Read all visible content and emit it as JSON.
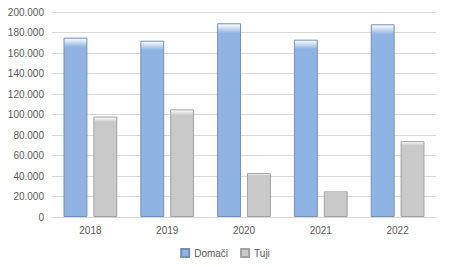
{
  "chart_data": {
    "type": "bar",
    "categories": [
      "2018",
      "2019",
      "2020",
      "2021",
      "2022"
    ],
    "series": [
      {
        "name": "Domači",
        "color": "#8fb4e3",
        "values": [
          175000,
          172000,
          189000,
          173000,
          188000
        ]
      },
      {
        "name": "Tuji",
        "color": "#c9c9c9",
        "values": [
          98000,
          105000,
          43000,
          25000,
          74000
        ]
      }
    ],
    "ylim": [
      0,
      200000
    ],
    "yticks": [
      0,
      {
        "value": 20000,
        "label": "20.000"
      },
      {
        "value": 40000,
        "label": "40.000"
      },
      {
        "value": 60000,
        "label": "60.000"
      },
      {
        "value": 80000,
        "label": "80.000"
      },
      {
        "value": 100000,
        "label": "100.000"
      },
      {
        "value": 120000,
        "label": "120.000"
      },
      {
        "value": 140000,
        "label": "140.000"
      },
      {
        "value": 160000,
        "label": "160.000"
      },
      {
        "value": 180000,
        "label": "180.000"
      },
      {
        "value": 200000,
        "label": "200.000"
      }
    ],
    "grid": true,
    "legend": "bottom"
  }
}
